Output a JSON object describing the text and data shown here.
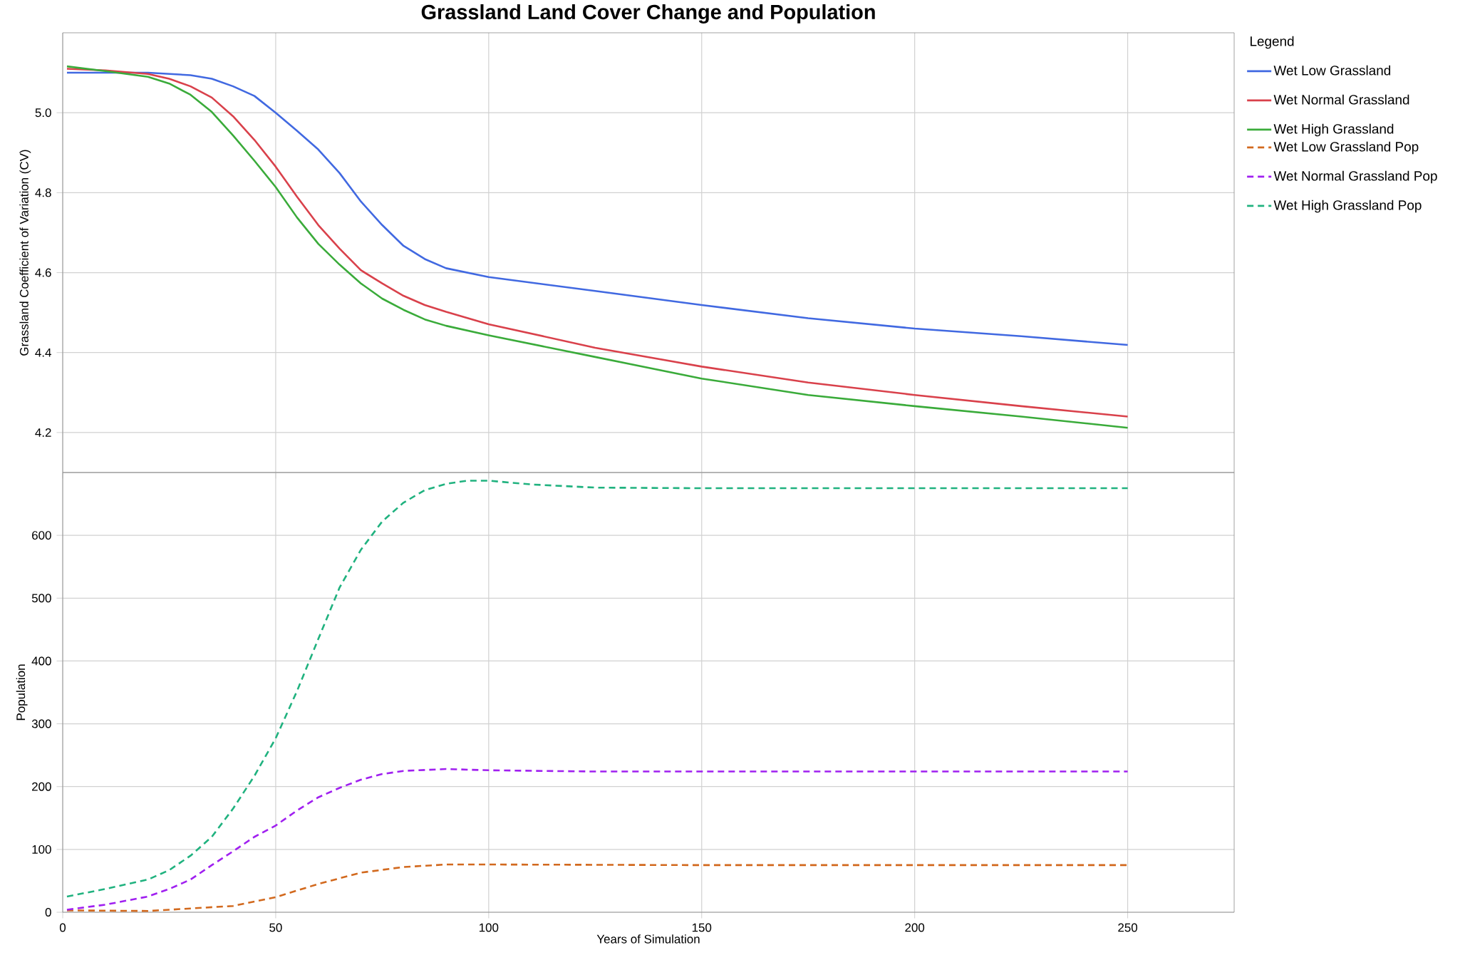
{
  "chart_data": [
    {
      "type": "line",
      "title": "Grassland Land Cover Change and Population",
      "ylabel": "Grassland Coefficient of Variation (CV)",
      "xlim": [
        0,
        275
      ],
      "xticks": [
        0,
        50,
        100,
        150,
        200,
        250
      ],
      "ylim": [
        4.1,
        5.2
      ],
      "yticks": [
        4.2,
        4.4,
        4.6,
        4.8,
        {
          "value": 5,
          "label": "5.0"
        }
      ],
      "tick_labels": "y",
      "grid": true,
      "legend": "right",
      "legend_title": "Legend",
      "marker": "none",
      "line_style": "solid",
      "series": [
        {
          "name": "Wet Low Grassland",
          "color": "#4169e1",
          "x": [
            1,
            20,
            30,
            35,
            40,
            45,
            50,
            55,
            60,
            65,
            70,
            75,
            80,
            85,
            90,
            100,
            125,
            150,
            175,
            200,
            225,
            250
          ],
          "values": [
            5.1,
            5.1,
            5.094,
            5.085,
            5.066,
            5.042,
            5.0,
            4.955,
            4.908,
            4.849,
            4.778,
            4.719,
            4.667,
            4.634,
            4.611,
            4.589,
            4.554,
            4.519,
            4.486,
            4.46,
            4.441,
            4.419
          ]
        },
        {
          "name": "Wet Normal Grassland",
          "color": "#d9414b",
          "x": [
            1,
            10,
            20,
            25,
            30,
            35,
            40,
            45,
            50,
            55,
            60,
            65,
            70,
            75,
            80,
            85,
            90,
            100,
            125,
            150,
            175,
            200,
            225,
            250
          ],
          "values": [
            5.11,
            5.106,
            5.097,
            5.085,
            5.066,
            5.038,
            4.991,
            4.932,
            4.865,
            4.79,
            4.719,
            4.66,
            4.606,
            4.573,
            4.542,
            4.519,
            4.502,
            4.471,
            4.412,
            4.365,
            4.325,
            4.294,
            4.266,
            4.24
          ]
        },
        {
          "name": "Wet High Grassland",
          "color": "#3aab3a",
          "x": [
            1,
            10,
            20,
            25,
            30,
            35,
            40,
            45,
            50,
            55,
            60,
            65,
            70,
            75,
            80,
            85,
            90,
            100,
            125,
            150,
            175,
            200,
            225,
            250
          ],
          "values": [
            5.116,
            5.104,
            5.09,
            5.073,
            5.045,
            5.002,
            4.943,
            4.88,
            4.814,
            4.738,
            4.672,
            4.62,
            4.573,
            4.535,
            4.507,
            4.483,
            4.467,
            4.443,
            4.389,
            4.335,
            4.294,
            4.266,
            4.24,
            4.212
          ]
        }
      ]
    },
    {
      "type": "line",
      "xlabel": "Years of Simulation",
      "ylabel": "Population",
      "xlim": [
        0,
        275
      ],
      "xticks": [
        0,
        50,
        100,
        150,
        200,
        250
      ],
      "ylim": [
        0,
        700
      ],
      "yticks": [
        0,
        100,
        200,
        300,
        400,
        500,
        600
      ],
      "grid": true,
      "legend": "right",
      "marker": "none",
      "line_style": "dashed",
      "series": [
        {
          "name": "Wet Low Grassland Pop",
          "color": "#d2691e",
          "x": [
            1,
            20,
            30,
            40,
            50,
            60,
            70,
            80,
            90,
            100,
            150,
            200,
            250
          ],
          "values": [
            3,
            2,
            6,
            10,
            24,
            45,
            63,
            72,
            76,
            76,
            75,
            75,
            75
          ]
        },
        {
          "name": "Wet Normal Grassland Pop",
          "color": "#a020f0",
          "x": [
            1,
            10,
            20,
            25,
            30,
            35,
            40,
            45,
            50,
            55,
            60,
            65,
            70,
            75,
            80,
            90,
            100,
            125,
            150,
            200,
            250
          ],
          "values": [
            4,
            12,
            25,
            37,
            52,
            75,
            97,
            120,
            138,
            162,
            183,
            198,
            211,
            220,
            225,
            228,
            226,
            224,
            224,
            224,
            224
          ]
        },
        {
          "name": "Wet High Grassland Pop",
          "color": "#20b27f",
          "x": [
            1,
            10,
            20,
            25,
            30,
            35,
            40,
            45,
            50,
            55,
            60,
            65,
            70,
            75,
            80,
            85,
            90,
            95,
            100,
            110,
            125,
            150,
            200,
            250
          ],
          "values": [
            25,
            37,
            52,
            67,
            90,
            120,
            165,
            217,
            277,
            352,
            435,
            517,
            577,
            622,
            652,
            672,
            682,
            687,
            687,
            681,
            676,
            675,
            675,
            675
          ]
        }
      ]
    }
  ]
}
